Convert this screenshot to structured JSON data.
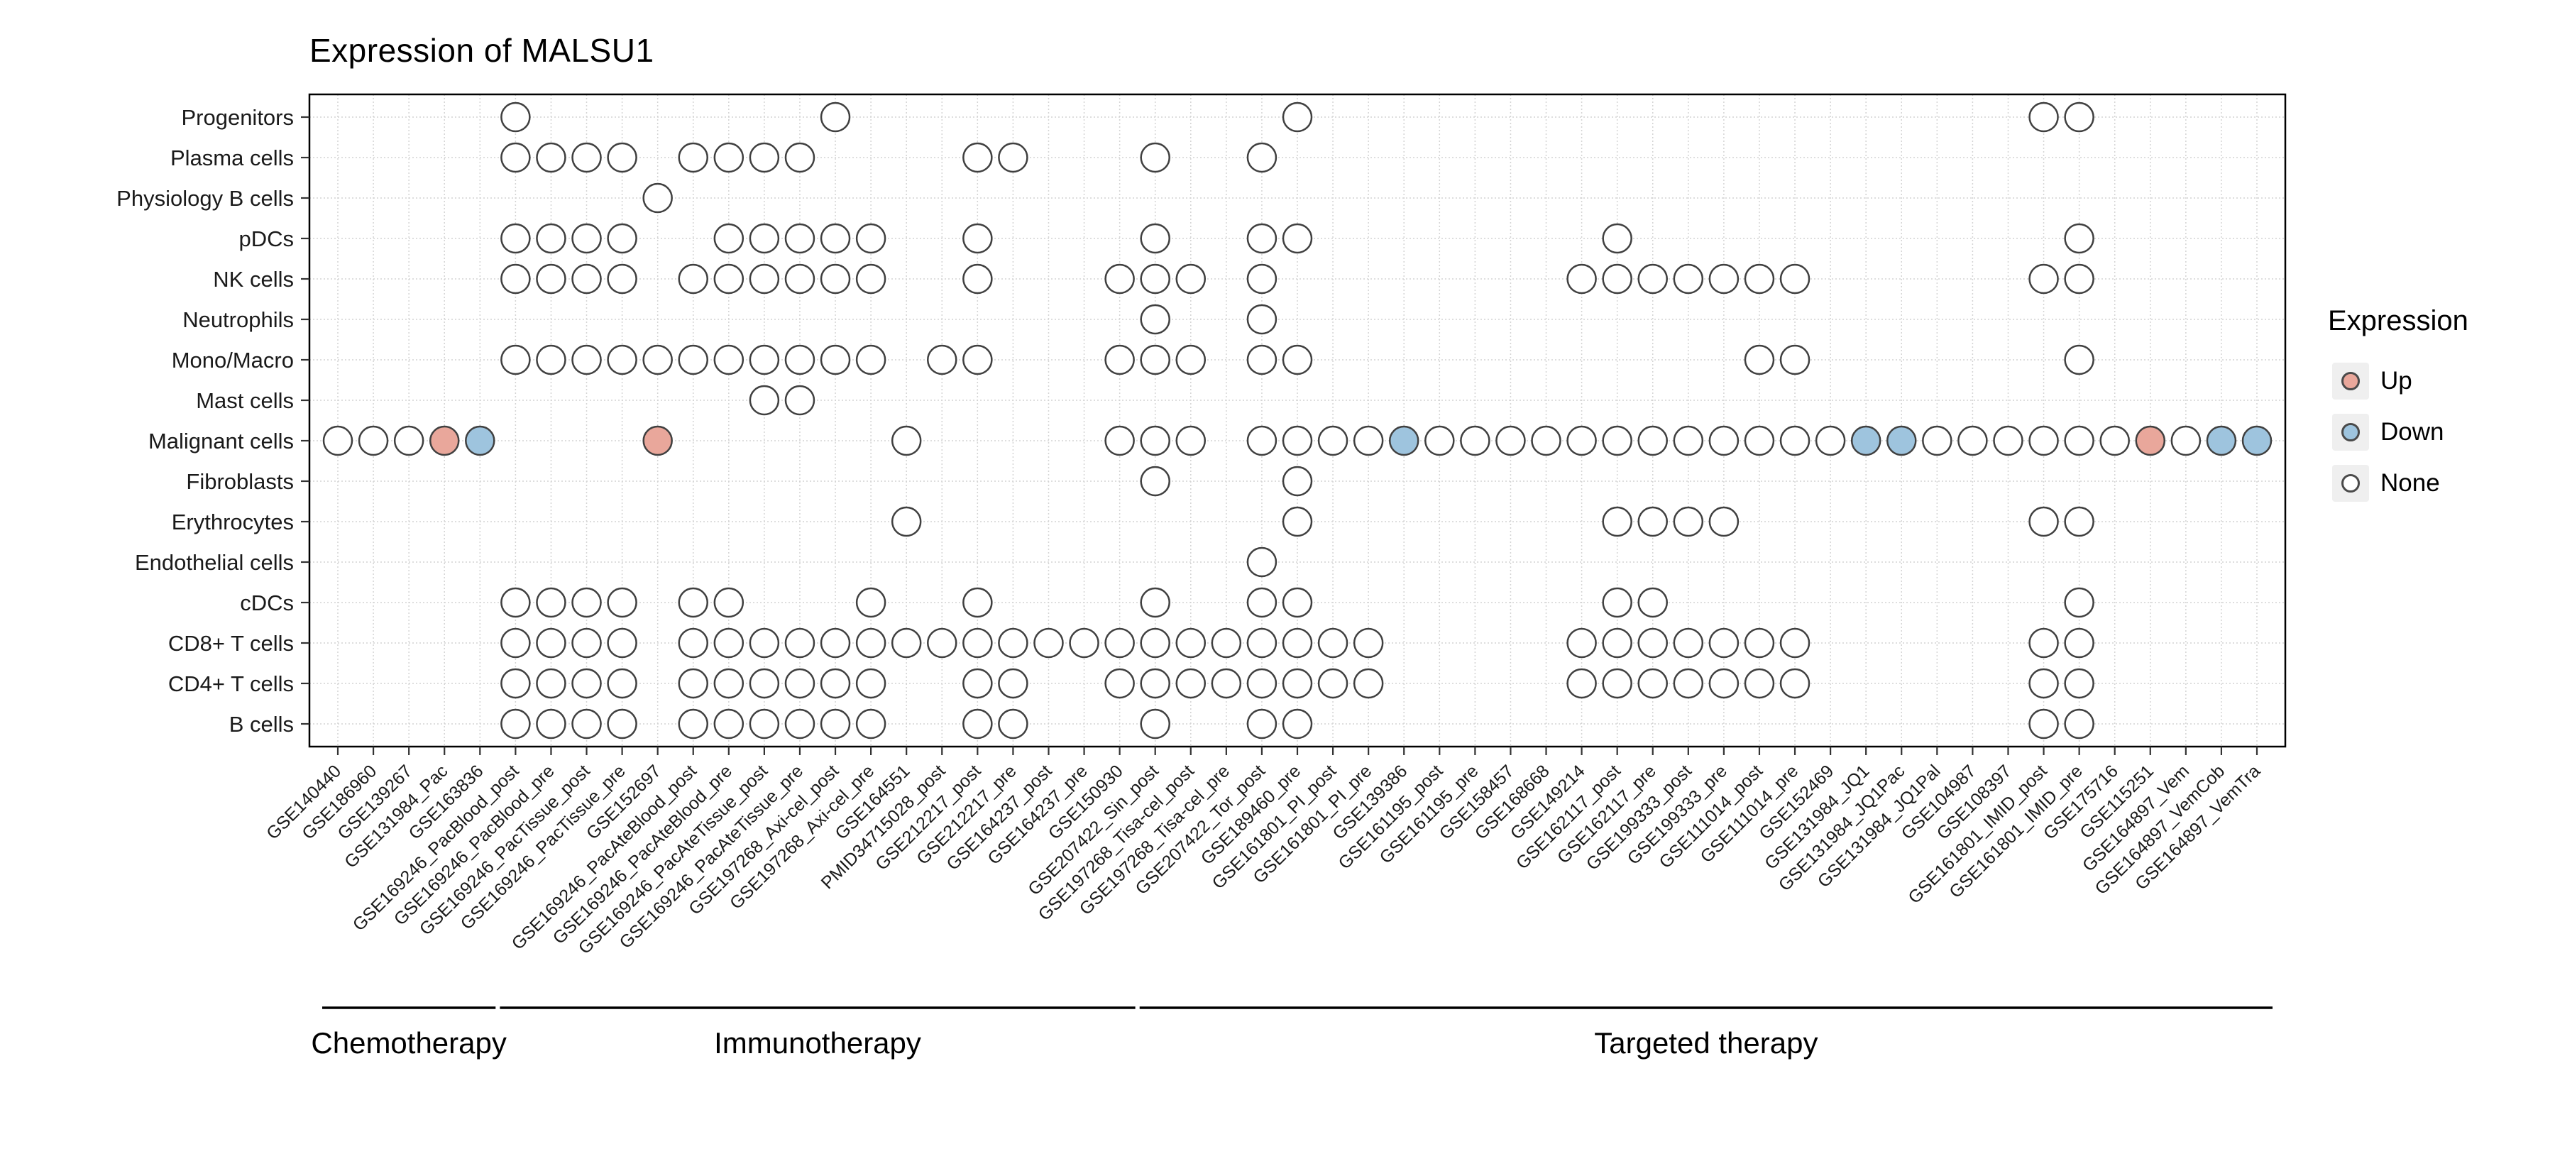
{
  "title": "Expression of MALSU1",
  "legend": {
    "title": "Expression",
    "items": [
      {
        "label": "Up",
        "color": "#E9A79B"
      },
      {
        "label": "Down",
        "color": "#9EC4DE"
      },
      {
        "label": "None",
        "color": "#FFFFFF"
      }
    ]
  },
  "groups": [
    {
      "label": "Chemotherapy",
      "start": 0,
      "end": 4
    },
    {
      "label": "Immunotherapy",
      "start": 5,
      "end": 22
    },
    {
      "label": "Targeted therapy",
      "start": 23,
      "end": 54
    }
  ],
  "chart_data": {
    "type": "scatter",
    "title": "Expression of MALSU1",
    "legend_title": "Expression",
    "rows": [
      "Progenitors",
      "Plasma cells",
      "Physiology B cells",
      "pDCs",
      "NK cells",
      "Neutrophils",
      "Mono/Macro",
      "Mast cells",
      "Malignant cells",
      "Fibroblasts",
      "Erythrocytes",
      "Endothelial cells",
      "cDCs",
      "CD8+ T cells",
      "CD4+ T cells",
      "B cells"
    ],
    "columns": [
      "GSE140440",
      "GSE186960",
      "GSE139267",
      "GSE131984_Pac",
      "GSE163836",
      "GSE169246_PacBlood_post",
      "GSE169246_PacBlood_pre",
      "GSE169246_PacTissue_post",
      "GSE169246_PacTissue_pre",
      "GSE152697",
      "GSE169246_PacAteBlood_post",
      "GSE169246_PacAteBlood_pre",
      "GSE169246_PacAteTissue_post",
      "GSE169246_PacAteTissue_pre",
      "GSE197268_Axi-cel_post",
      "GSE197268_Axi-cel_pre",
      "GSE164551",
      "PMID34715028_post",
      "GSE212217_post",
      "GSE212217_pre",
      "GSE164237_post",
      "GSE164237_pre",
      "GSE150930",
      "GSE207422_Sin_post",
      "GSE197268_Tisa-cel_post",
      "GSE197268_Tisa-cel_pre",
      "GSE207422_Tor_post",
      "GSE189460_pre",
      "GSE161801_PI_post",
      "GSE161801_PI_pre",
      "GSE139386",
      "GSE161195_post",
      "GSE161195_pre",
      "GSE158457",
      "GSE168668",
      "GSE149214",
      "GSE162117_post",
      "GSE162117_pre",
      "GSE199333_post",
      "GSE199333_pre",
      "GSE111014_post",
      "GSE111014_pre",
      "GSE152469",
      "GSE131984_JQ1",
      "GSE131984_JQ1Pac",
      "GSE131984_JQ1Pal",
      "GSE104987",
      "GSE108397",
      "GSE161801_IMID_post",
      "GSE161801_IMID_pre",
      "GSE175716",
      "GSE115251",
      "GSE164897_Vem",
      "GSE164897_VemCob",
      "GSE164897_VemTra"
    ],
    "cell_codes": {
      ".": "no dot",
      "N": "None",
      "U": "Up",
      "D": "Down"
    },
    "matrix": [
      ".....N........N............N....................NN.....",
      ".....NNNN.NNNN....NN...N..N............................",
      ".........N.............................................",
      ".....NNNN..NNNNN..N....N..NN........N............N.....",
      ".....NNNN.NNNNNN..N...NNN.N........NNNNNNN......NN.....",
      ".......................N..N............................",
      ".....NNNNNNNNNNN.NN...NNN.NN............NN.......N.....",
      "............NN.........................................",
      "NNNUD....U......N.....NNN.NNNNDNNNNNNNNNNNNDDNNNNNNUNDD",
      ".......................N...N...........................",
      "................N..........N........NNNN........NN.....",
      "..........................N............................",
      ".....NNNN.NN...N..N....N..NN........NN...........N.....",
      ".....NNNN.NNNNNNNNNNNNNNNNNNNN.....NNNNNNN......NN.....",
      ".....NNNN.NNNNNN..NN..NNNNNNNN.....NNNNNNN......NN.....",
      ".....NNNN.NNNNNN..NN...N..NN....................NN....."
    ],
    "colors": {
      "up": "#E9A79B",
      "down": "#9EC4DE",
      "none": "#FFFFFF",
      "outline": "#404040",
      "grid": "#D4D4D4",
      "panel_border": "#000000"
    }
  }
}
